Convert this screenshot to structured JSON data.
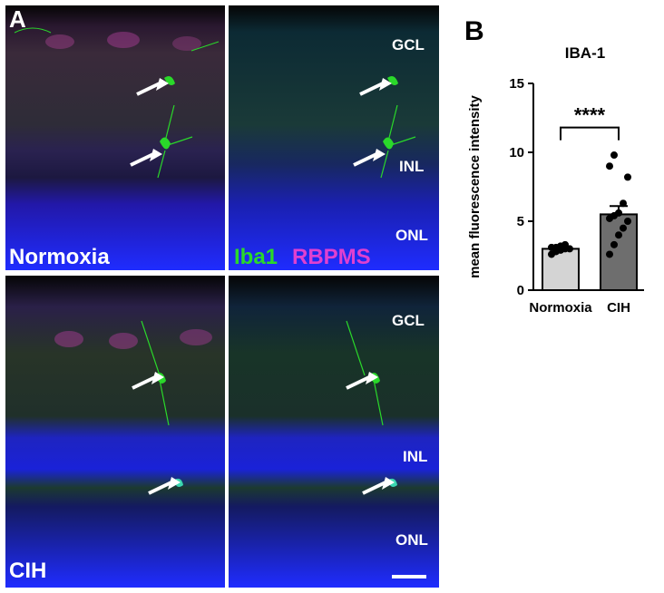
{
  "panels": {
    "a_letter": "A",
    "b_letter": "B",
    "normoxia_label": "Normoxia",
    "cih_label": "CIH",
    "iba1_label": "Iba1",
    "rbpms_label": "RBPMS",
    "layers": {
      "gcl": "GCL",
      "inl": "INL",
      "onl": "ONL"
    }
  },
  "colors": {
    "iba1": "#2ad82a",
    "rbpms": "#e040d0",
    "nuclei": "#1f2cff",
    "normoxia_bar": "#d4d4d4",
    "cih_bar": "#6e6e6e"
  },
  "chart_data": {
    "type": "bar",
    "title": "IBA-1",
    "ylabel": "mean fluorescence intensity",
    "categories": [
      "Normoxia",
      "CIH"
    ],
    "values": [
      3.0,
      5.5
    ],
    "errors": [
      0.15,
      0.6
    ],
    "ylim": [
      0,
      15
    ],
    "yticks": [
      "0",
      "5",
      "10",
      "15"
    ],
    "significance": "****",
    "points": [
      [
        2.6,
        2.8,
        2.9,
        3.0,
        3.0,
        3.1,
        3.1,
        3.2,
        3.3
      ],
      [
        2.6,
        3.3,
        4.0,
        4.5,
        5.0,
        5.2,
        5.4,
        5.6,
        6.3,
        8.2,
        9.0,
        9.8
      ]
    ]
  }
}
